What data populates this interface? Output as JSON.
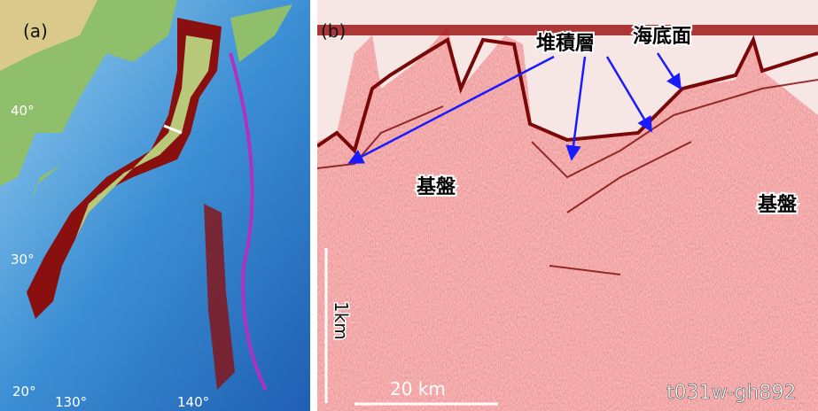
{
  "panel_a": {
    "label": "(a)",
    "lat_labels": [
      "40°",
      "30°",
      "20°"
    ],
    "lon_labels": [
      "130°",
      "140°"
    ]
  },
  "panel_b": {
    "label": "(b)",
    "annotations": [
      "堆積層",
      "海底面",
      "基盤",
      "基盤"
    ],
    "vertical_scale": "1km",
    "horizontal_scale": "20 km",
    "line_id": "t031w-gh892"
  }
}
